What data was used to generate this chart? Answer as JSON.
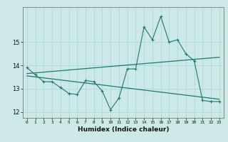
{
  "x": [
    0,
    1,
    2,
    3,
    4,
    5,
    6,
    7,
    8,
    9,
    10,
    11,
    12,
    13,
    14,
    15,
    16,
    17,
    18,
    19,
    20,
    21,
    22,
    23
  ],
  "line1": [
    13.9,
    13.6,
    13.3,
    13.3,
    13.05,
    12.8,
    12.75,
    13.35,
    13.3,
    12.9,
    12.1,
    12.6,
    13.85,
    13.85,
    15.65,
    15.1,
    16.1,
    15.0,
    15.1,
    14.5,
    14.2,
    12.5,
    12.45,
    12.45
  ],
  "trend1_x": [
    0,
    23
  ],
  "trend1_y": [
    13.65,
    14.35
  ],
  "trend2_x": [
    0,
    23
  ],
  "trend2_y": [
    13.55,
    12.55
  ],
  "main_color": "#1a7a6e",
  "bg_color": "#cce9e7",
  "grid_color": "#a8d5d2",
  "xlabel": "Humidex (Indice chaleur)",
  "ylim": [
    11.75,
    16.5
  ],
  "xlim": [
    -0.5,
    23.5
  ],
  "yticks": [
    12,
    13,
    14,
    15
  ],
  "xticks": [
    0,
    1,
    2,
    3,
    4,
    5,
    6,
    7,
    8,
    9,
    10,
    11,
    12,
    13,
    14,
    15,
    16,
    17,
    18,
    19,
    20,
    21,
    22,
    23
  ]
}
